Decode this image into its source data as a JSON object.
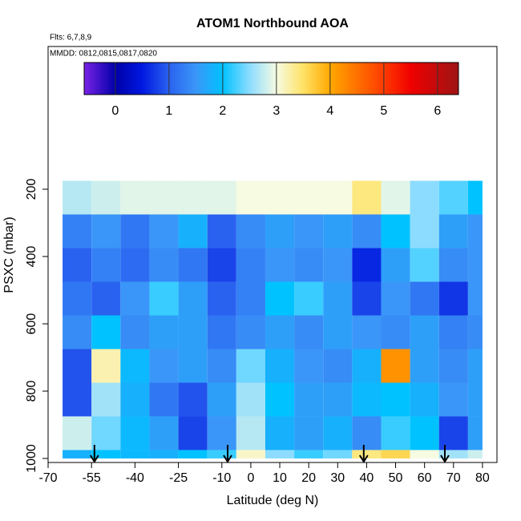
{
  "chart_data": {
    "type": "heatmap",
    "title": "ATOM1 Northbound AOA",
    "annotations": [
      "Flts: 6,7,8,9",
      "MMDD: 0812,0815,0817,0820"
    ],
    "x_label": "Latitude (deg N)",
    "y_label": "PSXC (mbar)",
    "xlim": [
      -70,
      85
    ],
    "xticks": [
      -70,
      -55,
      -40,
      -25,
      -10,
      0,
      10,
      20,
      30,
      40,
      50,
      60,
      70,
      80
    ],
    "ylim": [
      1012,
      -224
    ],
    "yticks": [
      200,
      400,
      600,
      800,
      1000
    ],
    "x_edges": [
      -65,
      -55,
      -45,
      -35,
      -25,
      -15,
      -5,
      5,
      15,
      25,
      35,
      45,
      55,
      65,
      75,
      80
    ],
    "y_edges": [
      175,
      275,
      375,
      475,
      575,
      675,
      775,
      875,
      975,
      1000
    ],
    "values": [
      [
        2.7,
        2.8,
        2.9,
        2.9,
        2.9,
        2.9,
        3.0,
        3.0,
        3.0,
        3.0,
        3.4,
        2.9,
        2.5,
        2.3,
        2.0
      ],
      [
        1.3,
        1.5,
        1.2,
        1.5,
        1.8,
        1.0,
        1.4,
        1.6,
        1.5,
        1.6,
        1.4,
        2.0,
        2.5,
        1.6,
        1.5
      ],
      [
        1.0,
        1.3,
        1.1,
        1.4,
        1.2,
        0.8,
        1.3,
        1.5,
        1.4,
        1.5,
        0.6,
        1.6,
        2.3,
        1.4,
        1.5
      ],
      [
        1.2,
        1.0,
        1.5,
        2.2,
        1.6,
        1.0,
        1.3,
        2.0,
        2.2,
        1.6,
        0.8,
        1.5,
        1.2,
        0.7,
        1.5
      ],
      [
        1.4,
        2.0,
        1.4,
        1.6,
        1.6,
        1.2,
        1.4,
        1.6,
        1.4,
        1.6,
        1.5,
        1.4,
        1.6,
        1.3,
        1.4
      ],
      [
        0.9,
        3.2,
        1.9,
        1.5,
        1.6,
        1.4,
        2.4,
        1.8,
        1.5,
        1.4,
        1.8,
        4.2,
        1.6,
        1.4,
        1.6
      ],
      [
        0.9,
        2.6,
        1.8,
        1.2,
        0.9,
        1.6,
        2.6,
        2.0,
        1.6,
        1.6,
        1.9,
        2.0,
        1.8,
        1.5,
        1.6
      ],
      [
        2.8,
        2.4,
        1.9,
        1.6,
        0.8,
        1.5,
        2.7,
        1.8,
        1.6,
        1.8,
        1.4,
        2.2,
        2.0,
        0.8,
        1.6
      ],
      [
        1.8,
        2.0,
        1.9,
        1.8,
        2.0,
        2.2,
        3.1,
        2.5,
        2.2,
        2.4,
        3.4,
        3.6,
        3.0,
        2.6,
        2.8
      ]
    ],
    "zlim": [
      -0.58,
      6.39
    ],
    "zticks": [
      0,
      1,
      2,
      3,
      4,
      5,
      6
    ],
    "colorscale": [
      [
        -0.58,
        "#7a22e6"
      ],
      [
        0,
        "#0000a8"
      ],
      [
        0.5,
        "#0018e0"
      ],
      [
        1,
        "#2a62f0"
      ],
      [
        1.5,
        "#3a96f8"
      ],
      [
        2,
        "#00c2ff"
      ],
      [
        2.5,
        "#8cdcff"
      ],
      [
        3,
        "#f6fbe2"
      ],
      [
        3.5,
        "#ffe266"
      ],
      [
        4,
        "#ffa800"
      ],
      [
        5,
        "#ff3a00"
      ],
      [
        5.5,
        "#f00000"
      ],
      [
        6.39,
        "#9e1414"
      ]
    ],
    "arrows": [
      -54,
      -8,
      39,
      67
    ]
  }
}
